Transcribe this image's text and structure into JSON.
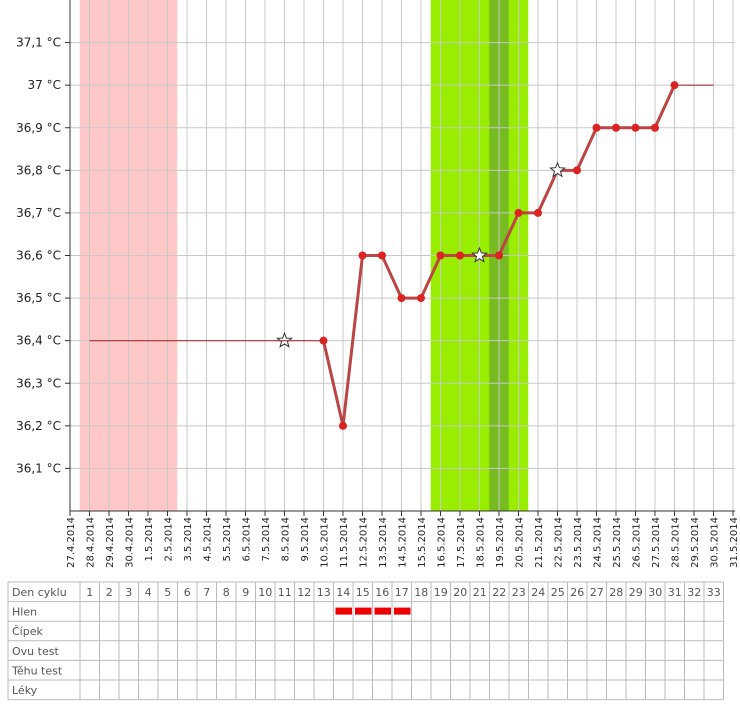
{
  "chart_data": {
    "type": "line",
    "categories": [
      "27.4.2014",
      "28.4.2014",
      "29.4.2014",
      "30.4.2014",
      "1.5.2014",
      "2.5.2014",
      "3.5.2014",
      "4.5.2014",
      "5.5.2014",
      "6.5.2014",
      "7.5.2014",
      "8.5.2014",
      "9.5.2014",
      "10.5.2014",
      "11.5.2014",
      "12.5.2014",
      "13.5.2014",
      "14.5.2014",
      "15.5.2014",
      "16.5.2014",
      "17.5.2014",
      "18.5.2014",
      "19.5.2014",
      "20.5.2014",
      "21.5.2014",
      "22.5.2014",
      "23.5.2014",
      "24.5.2014",
      "25.5.2014",
      "26.5.2014",
      "27.5.2014",
      "28.5.2014",
      "29.5.2014",
      "30.5.2014",
      "31.5.2014"
    ],
    "series": [
      {
        "color": "#bb4444",
        "style": "thick",
        "point_color": "#dd2222",
        "values": [
          null,
          null,
          null,
          null,
          null,
          null,
          null,
          null,
          null,
          null,
          null,
          36.4,
          null,
          36.4,
          36.2,
          36.6,
          36.6,
          36.5,
          36.5,
          36.6,
          36.6,
          36.6,
          36.6,
          36.7,
          36.7,
          36.8,
          36.8,
          36.9,
          36.9,
          36.9,
          36.9,
          37.0,
          null,
          null,
          null
        ],
        "markers": [
          null,
          null,
          null,
          null,
          null,
          null,
          null,
          null,
          null,
          null,
          null,
          "star",
          null,
          "dot",
          "dot",
          "dot",
          "dot",
          "dot",
          "dot",
          "dot",
          "dot",
          "star",
          "dot",
          "dot",
          "dot",
          "star",
          "dot",
          "dot",
          "dot",
          "dot",
          "dot",
          "dot",
          null,
          null,
          null
        ]
      },
      {
        "color": "#aa3333",
        "style": "thin",
        "values": [
          null,
          36.4,
          36.4,
          36.4,
          36.4,
          36.4,
          36.4,
          36.4,
          36.4,
          36.4,
          36.4,
          36.4,
          36.4,
          36.4,
          null,
          null,
          null,
          null,
          null,
          null,
          null,
          null,
          null,
          null,
          null,
          null,
          null,
          null,
          null,
          null,
          null,
          37.0,
          37.0,
          37.0,
          null
        ]
      }
    ],
    "bands": [
      {
        "from": "28.4.2014",
        "to": "2.5.2014",
        "color": "#ffc8c8"
      },
      {
        "from": "16.5.2014",
        "to": "20.5.2014",
        "color": "#99ee00"
      },
      {
        "from": "19.5.2014",
        "to": "19.5.2014",
        "color": "#77bb22"
      }
    ],
    "ylim": [
      36.0,
      37.2
    ],
    "yticks": [
      {
        "value": 36.1,
        "label": "36,1 °C"
      },
      {
        "value": 36.2,
        "label": "36,2 °C"
      },
      {
        "value": 36.3,
        "label": "36,3 °C"
      },
      {
        "value": 36.4,
        "label": "36,4 °C"
      },
      {
        "value": 36.5,
        "label": "36,5 °C"
      },
      {
        "value": 36.6,
        "label": "36,6 °C"
      },
      {
        "value": 36.7,
        "label": "36,7 °C"
      },
      {
        "value": 36.8,
        "label": "36,8 °C"
      },
      {
        "value": 36.9,
        "label": "36,9 °C"
      },
      {
        "value": 37.0,
        "label": "37 °C"
      },
      {
        "value": 37.1,
        "label": "37,1 °C"
      }
    ],
    "grid": true
  },
  "table": {
    "header": "Den cyklu",
    "days": [
      1,
      2,
      3,
      4,
      5,
      6,
      7,
      8,
      9,
      10,
      11,
      12,
      13,
      14,
      15,
      16,
      17,
      18,
      19,
      20,
      21,
      22,
      23,
      24,
      25,
      26,
      27,
      28,
      29,
      30,
      31,
      32,
      33
    ],
    "mark_color": "#ee0000",
    "rows": [
      {
        "label": "Hlen",
        "marks": [
          14,
          15,
          16,
          17
        ]
      },
      {
        "label": "Čípek",
        "marks": []
      },
      {
        "label": "Ovu test",
        "marks": []
      },
      {
        "label": "Těhu test",
        "marks": []
      },
      {
        "label": "Léky",
        "marks": []
      }
    ]
  }
}
